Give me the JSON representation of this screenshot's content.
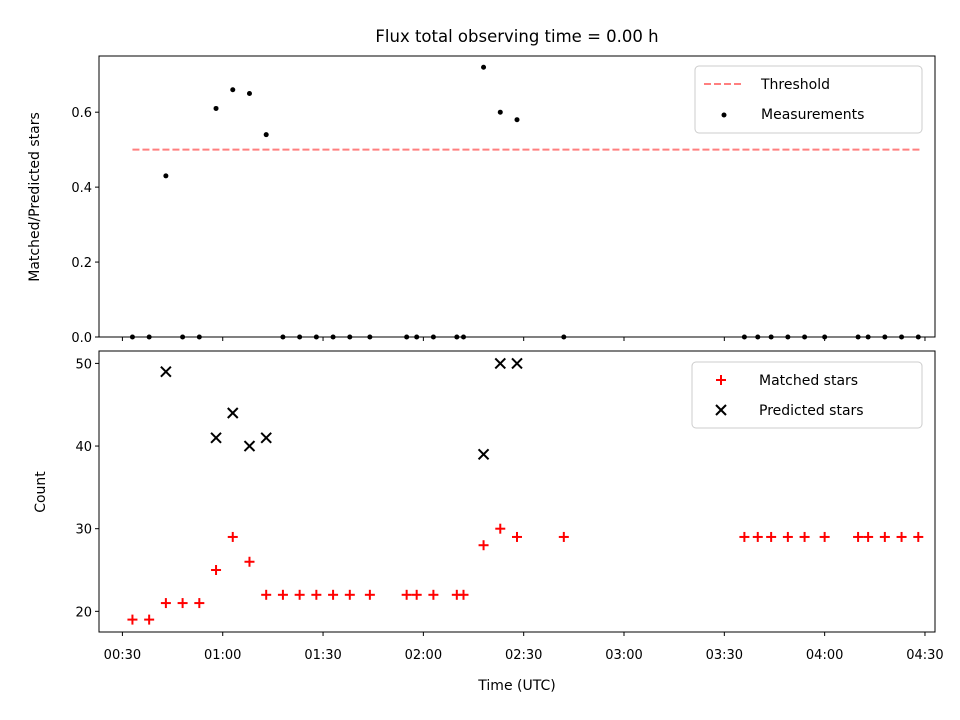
{
  "chart_data": [
    {
      "type": "scatter",
      "title": "Flux total observing time = 0.00 h",
      "xlabel": "",
      "ylabel": "Matched/Predicted stars",
      "ylim": [
        0.0,
        0.75
      ],
      "xlim": [
        "00:23",
        "04:33"
      ],
      "yticks": [
        0.0,
        0.2,
        0.4,
        0.6
      ],
      "ytick_labels": [
        "0.0",
        "0.2",
        "0.4",
        "0.6"
      ],
      "legend_position": "top-right",
      "series": [
        {
          "name": "Threshold",
          "style": "dashed-line",
          "color": "#ff7f7f",
          "x": [
            "00:33",
            "04:29"
          ],
          "y": [
            0.5,
            0.5
          ]
        },
        {
          "name": "Measurements",
          "style": "point",
          "color": "#000000",
          "x": [
            "00:33",
            "00:38",
            "00:43",
            "00:48",
            "00:53",
            "00:58",
            "01:03",
            "01:08",
            "01:13",
            "01:18",
            "01:23",
            "01:28",
            "01:33",
            "01:38",
            "01:44",
            "01:55",
            "01:58",
            "02:03",
            "02:10",
            "02:12",
            "02:18",
            "02:23",
            "02:28",
            "02:42",
            "03:36",
            "03:40",
            "03:44",
            "03:49",
            "03:54",
            "04:00",
            "04:10",
            "04:13",
            "04:18",
            "04:23",
            "04:28"
          ],
          "y": [
            0,
            0,
            0.43,
            0,
            0,
            0.61,
            0.66,
            0.65,
            0.54,
            0,
            0,
            0,
            0,
            0,
            0,
            0,
            0,
            0,
            0,
            0,
            0.72,
            0.6,
            0.58,
            0,
            0,
            0,
            0,
            0,
            0,
            0,
            0,
            0,
            0,
            0,
            0
          ]
        }
      ]
    },
    {
      "type": "scatter",
      "title": "",
      "xlabel": "Time (UTC)",
      "ylabel": "Count",
      "ylim": [
        17.5,
        51.5
      ],
      "xlim": [
        "00:23",
        "04:33"
      ],
      "yticks": [
        20,
        30,
        40,
        50
      ],
      "ytick_labels": [
        "20",
        "30",
        "40",
        "50"
      ],
      "xticks": [
        "00:30",
        "01:00",
        "01:30",
        "02:00",
        "02:30",
        "03:00",
        "03:30",
        "04:00",
        "04:30"
      ],
      "legend_position": "top-right",
      "series": [
        {
          "name": "Matched stars",
          "marker": "+",
          "color": "#ff0000",
          "x": [
            "00:33",
            "00:38",
            "00:43",
            "00:48",
            "00:53",
            "00:58",
            "01:03",
            "01:08",
            "01:13",
            "01:18",
            "01:23",
            "01:28",
            "01:33",
            "01:38",
            "01:44",
            "01:55",
            "01:58",
            "02:03",
            "02:10",
            "02:12",
            "02:18",
            "02:23",
            "02:28",
            "02:42",
            "03:36",
            "03:40",
            "03:44",
            "03:49",
            "03:54",
            "04:00",
            "04:10",
            "04:13",
            "04:18",
            "04:23",
            "04:28"
          ],
          "y": [
            19,
            19,
            21,
            21,
            21,
            25,
            29,
            26,
            22,
            22,
            22,
            22,
            22,
            22,
            22,
            22,
            22,
            22,
            22,
            22,
            28,
            30,
            29,
            29,
            29,
            29,
            29,
            29,
            29,
            29,
            29,
            29,
            29,
            29,
            29
          ]
        },
        {
          "name": "Predicted stars",
          "marker": "x",
          "color": "#000000",
          "x": [
            "00:43",
            "00:58",
            "01:03",
            "01:08",
            "01:13",
            "02:18",
            "02:23",
            "02:28"
          ],
          "y": [
            49,
            41,
            44,
            40,
            41,
            39,
            50,
            50
          ]
        }
      ]
    }
  ]
}
